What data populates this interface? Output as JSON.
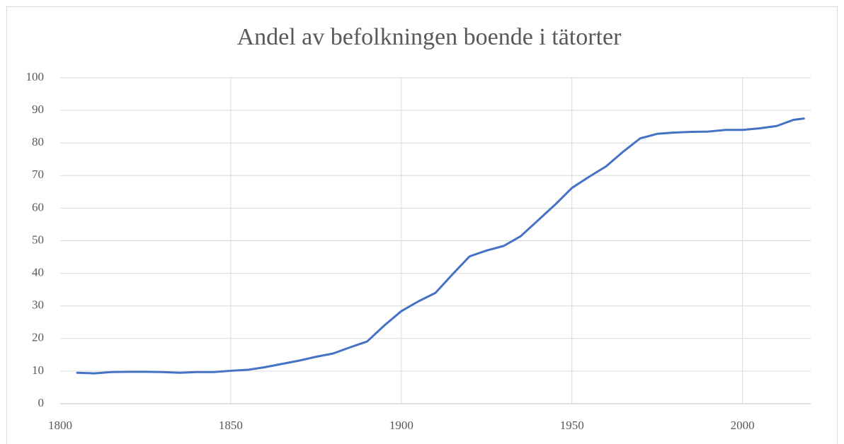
{
  "chart_data": {
    "type": "line",
    "title": "Andel av befolkningen boende i tätorter",
    "x": [
      1805,
      1810,
      1815,
      1820,
      1825,
      1830,
      1835,
      1840,
      1845,
      1850,
      1855,
      1860,
      1865,
      1870,
      1875,
      1880,
      1885,
      1890,
      1895,
      1900,
      1905,
      1910,
      1915,
      1920,
      1925,
      1930,
      1935,
      1940,
      1945,
      1950,
      1955,
      1960,
      1965,
      1970,
      1975,
      1980,
      1985,
      1990,
      1995,
      2000,
      2005,
      2010,
      2015,
      2018
    ],
    "series": [
      {
        "name": "Andel",
        "color": "#4472c4",
        "values": [
          9.5,
          9.3,
          9.7,
          9.8,
          9.8,
          9.7,
          9.5,
          9.7,
          9.7,
          10.1,
          10.4,
          11.2,
          12.2,
          13.2,
          14.4,
          15.4,
          17.3,
          19.1,
          24.0,
          28.4,
          31.4,
          34.0,
          39.7,
          45.2,
          47.0,
          48.4,
          51.4,
          56.2,
          61.0,
          66.2,
          69.6,
          72.8,
          77.3,
          81.4,
          82.8,
          83.2,
          83.4,
          83.5,
          84.0,
          84.0,
          84.5,
          85.2,
          87.1,
          87.5
        ]
      }
    ],
    "xlim": [
      1800,
      2020
    ],
    "xticks": [
      1800,
      1850,
      1900,
      1950,
      2000
    ],
    "ylim": [
      0,
      100
    ],
    "yticks": [
      0,
      10,
      20,
      30,
      40,
      50,
      60,
      70,
      80,
      90,
      100
    ],
    "grid": true
  }
}
